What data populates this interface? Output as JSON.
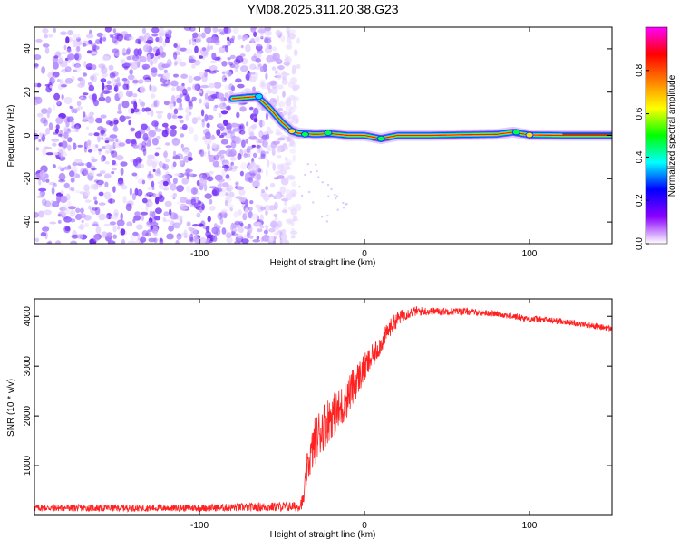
{
  "title": "YM08.2025.311.20.38.G23",
  "chart_data": [
    {
      "type": "heatmap",
      "xlabel": "Height of straight line (km)",
      "ylabel": "Frequency (Hz)",
      "xlim": [
        -200,
        150
      ],
      "ylim": [
        -50,
        50
      ],
      "xticks": [
        -100,
        0,
        100
      ],
      "yticks": [
        -40,
        -20,
        0,
        20,
        40
      ],
      "colorbar": {
        "label": "Normalized spectral amplitude",
        "range": [
          0,
          1
        ],
        "ticks": [
          0.0,
          0.2,
          0.4,
          0.6,
          0.8
        ],
        "tick_labels": [
          "0.0",
          "0.2",
          "0.4",
          "0.6",
          "0.8"
        ],
        "colors": [
          "#ffffff",
          "#8a00ff",
          "#0000ff",
          "#00ffff",
          "#00ff00",
          "#ffff00",
          "#ff8000",
          "#ff0000",
          "#ff00ff"
        ]
      },
      "noise_region_x": [
        -200,
        -48
      ],
      "ridge": {
        "x": [
          -80,
          -65,
          -58,
          -50,
          -44,
          -40,
          -30,
          -20,
          -10,
          0,
          10,
          20,
          40,
          60,
          80,
          90,
          100,
          120,
          150
        ],
        "y": [
          17,
          18,
          13,
          6,
          2,
          1,
          0.5,
          0.8,
          0,
          0,
          -1.5,
          0,
          0,
          0.3,
          0.5,
          1.5,
          0.2,
          0,
          0
        ]
      }
    },
    {
      "type": "line",
      "xlabel": "Height of straight line (km)",
      "ylabel": "SNR (10 * v/v)",
      "xlim": [
        -200,
        150
      ],
      "ylim": [
        0,
        4350
      ],
      "xticks": [
        -100,
        0,
        100
      ],
      "yticks": [
        1000,
        2000,
        3000,
        4000
      ],
      "series": [
        {
          "name": "SNR",
          "color": "#ff2020",
          "x": [
            -200,
            -150,
            -100,
            -60,
            -40,
            -37,
            -35,
            -30,
            -25,
            -20,
            -15,
            -10,
            -5,
            0,
            5,
            10,
            15,
            20,
            25,
            30,
            40,
            60,
            80,
            100,
            120,
            140,
            150
          ],
          "y": [
            150,
            150,
            150,
            170,
            180,
            300,
            900,
            1500,
            1800,
            2000,
            2100,
            2400,
            2700,
            2950,
            3200,
            3450,
            3750,
            3950,
            4050,
            4100,
            4100,
            4100,
            4050,
            3950,
            3900,
            3800,
            3750
          ],
          "noise": [
            70,
            70,
            70,
            90,
            100,
            150,
            300,
            500,
            500,
            450,
            450,
            400,
            350,
            300,
            250,
            200,
            180,
            150,
            120,
            100,
            80,
            70,
            60,
            70,
            60,
            60,
            60
          ]
        }
      ]
    }
  ]
}
